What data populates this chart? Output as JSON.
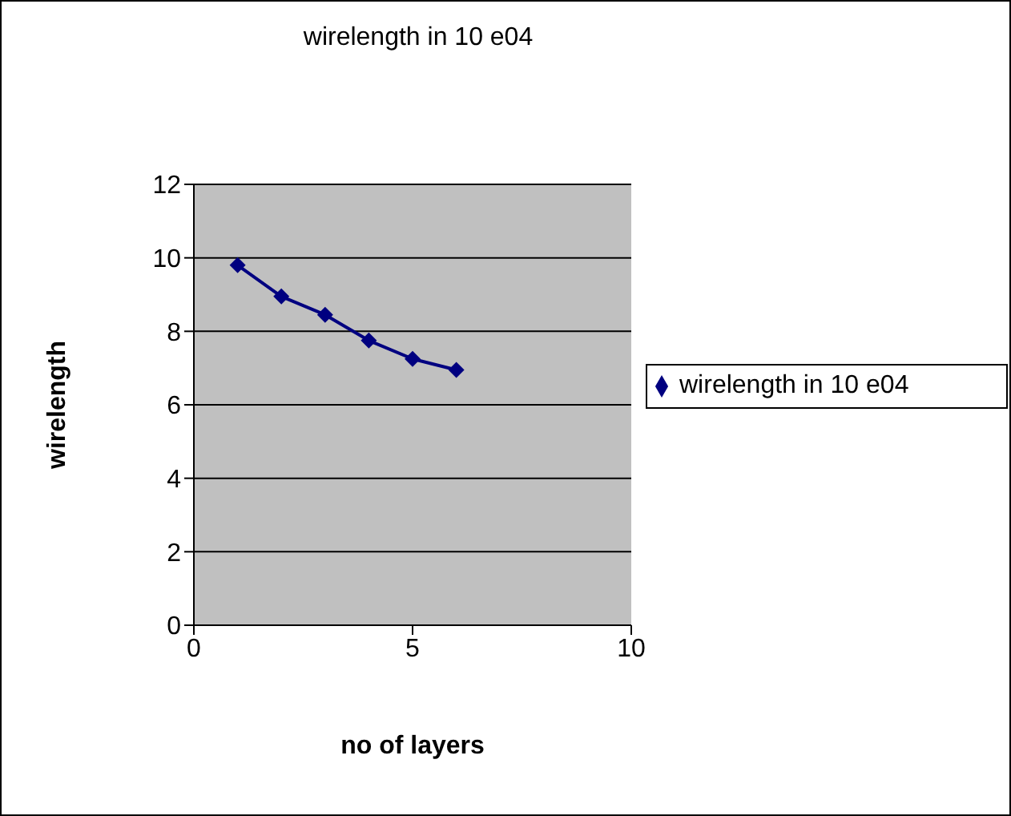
{
  "chart_data": {
    "type": "line",
    "title": "wirelength in 10 e04",
    "xlabel": "no of layers",
    "ylabel": "wirelength",
    "x": [
      1,
      2,
      3,
      4,
      5,
      6
    ],
    "series": [
      {
        "name": "wirelength in 10 e04",
        "color": "#000080",
        "values": [
          9.8,
          8.95,
          8.45,
          7.75,
          7.25,
          6.95
        ]
      }
    ],
    "xlim": [
      0,
      10
    ],
    "xticks": [
      0,
      5,
      10
    ],
    "ylim": [
      0,
      12
    ],
    "yticks": [
      0,
      2,
      4,
      6,
      8,
      10,
      12
    ],
    "grid": "y",
    "legend": "right",
    "marker": "diamond",
    "line_style": "solid"
  }
}
